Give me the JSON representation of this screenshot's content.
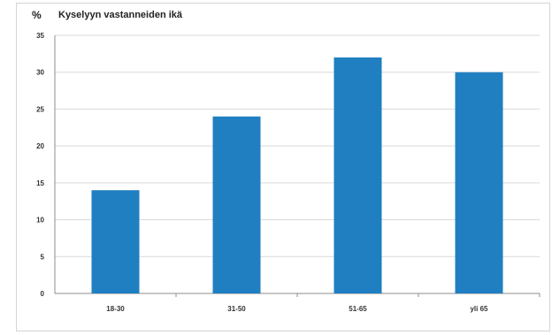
{
  "chart_data": {
    "type": "bar",
    "title": "Kyselyyn vastanneiden ikä",
    "unit_label": "%",
    "categories": [
      "18-30",
      "31-50",
      "51-65",
      "yli 65"
    ],
    "values": [
      14,
      24,
      32,
      30
    ],
    "ylim": [
      0,
      35
    ],
    "yticks": [
      0,
      5,
      10,
      15,
      20,
      25,
      30,
      35
    ],
    "grid": true,
    "bar_color": "#1f7fc1"
  }
}
